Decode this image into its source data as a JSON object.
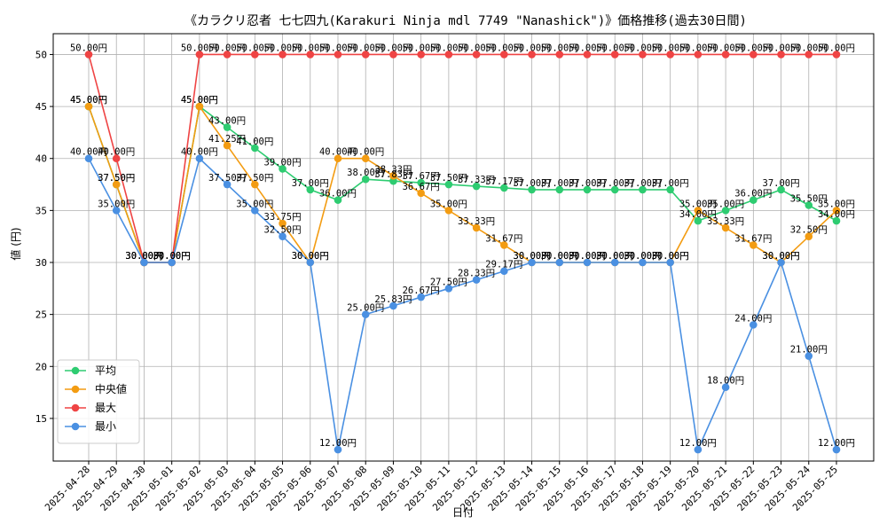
{
  "chart_data": {
    "type": "line",
    "title": "《カラクリ忍者 七七四九(Karakuri Ninja mdl 7749 \"Nanashick\")》価格推移(過去30日間)",
    "xlabel": "日付",
    "ylabel": "値 (円)",
    "ylim": [
      10.9,
      52.0
    ],
    "yticks": [
      15,
      20,
      25,
      30,
      35,
      40,
      45,
      50
    ],
    "grid": true,
    "legend_position": "lower-left",
    "value_suffix": "円",
    "categories": [
      "2025-04-28",
      "2025-04-29",
      "2025-04-30",
      "2025-05-01",
      "2025-05-02",
      "2025-05-03",
      "2025-05-04",
      "2025-05-05",
      "2025-05-06",
      "2025-05-07",
      "2025-05-08",
      "2025-05-09",
      "2025-05-10",
      "2025-05-11",
      "2025-05-12",
      "2025-05-13",
      "2025-05-14",
      "2025-05-15",
      "2025-05-16",
      "2025-05-17",
      "2025-05-18",
      "2025-05-19",
      "2025-05-20",
      "2025-05-21",
      "2025-05-22",
      "2025-05-23",
      "2025-05-24",
      "2025-05-25"
    ],
    "series": [
      {
        "name": "平均",
        "color": "#2ecc71",
        "values": [
          45.0,
          37.5,
          30.0,
          30.0,
          45.0,
          43.0,
          41.0,
          39.0,
          37.0,
          36.0,
          38.0,
          37.83,
          37.67,
          37.5,
          37.33,
          37.17,
          37.0,
          37.0,
          37.0,
          37.0,
          37.0,
          37.0,
          34.0,
          35.0,
          36.0,
          37.0,
          35.5,
          34.0
        ]
      },
      {
        "name": "中央値",
        "color": "#f39c12",
        "values": [
          45.0,
          37.5,
          30.0,
          30.0,
          45.0,
          41.25,
          37.5,
          33.75,
          30.0,
          40.0,
          40.0,
          38.33,
          36.67,
          35.0,
          33.33,
          31.67,
          30.0,
          30.0,
          30.0,
          30.0,
          30.0,
          30.0,
          35.0,
          33.33,
          31.67,
          30.0,
          32.5,
          35.0
        ]
      },
      {
        "name": "最大",
        "color": "#ef4444",
        "values": [
          50.0,
          40.0,
          30.0,
          30.0,
          50.0,
          50.0,
          50.0,
          50.0,
          50.0,
          50.0,
          50.0,
          50.0,
          50.0,
          50.0,
          50.0,
          50.0,
          50.0,
          50.0,
          50.0,
          50.0,
          50.0,
          50.0,
          50.0,
          50.0,
          50.0,
          50.0,
          50.0,
          50.0
        ]
      },
      {
        "name": "最小",
        "color": "#4a90e2",
        "values": [
          40.0,
          35.0,
          30.0,
          30.0,
          40.0,
          37.5,
          35.0,
          32.5,
          30.0,
          12.0,
          25.0,
          25.83,
          26.67,
          27.5,
          28.33,
          29.17,
          30.0,
          30.0,
          30.0,
          30.0,
          30.0,
          30.0,
          12.0,
          18.0,
          24.0,
          30.0,
          21.0,
          12.0
        ]
      }
    ]
  }
}
